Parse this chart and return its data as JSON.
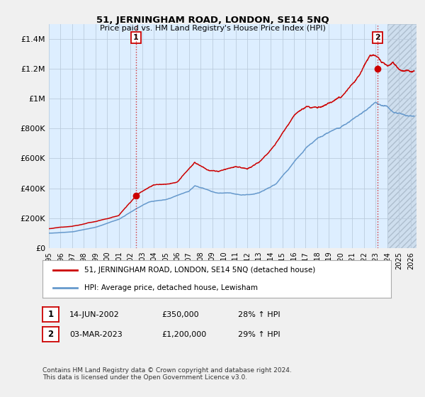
{
  "title": "51, JERNINGHAM ROAD, LONDON, SE14 5NQ",
  "subtitle": "Price paid vs. HM Land Registry's House Price Index (HPI)",
  "ylabel_ticks": [
    "£0",
    "£200K",
    "£400K",
    "£600K",
    "£800K",
    "£1M",
    "£1.2M",
    "£1.4M"
  ],
  "ytick_values": [
    0,
    200000,
    400000,
    600000,
    800000,
    1000000,
    1200000,
    1400000
  ],
  "ylim": [
    0,
    1500000
  ],
  "xlim_start": 1995.0,
  "xlim_end": 2026.5,
  "red_line_color": "#cc0000",
  "blue_line_color": "#6699cc",
  "plot_bg_color": "#ddeeff",
  "hatch_color": "#c0ccdd",
  "marker1_date": 2002.45,
  "marker1_value": 350000,
  "marker2_date": 2023.17,
  "marker2_value": 1200000,
  "hatch_start": 2024.0,
  "vline_color": "#cc0000",
  "vline_style": ":",
  "annotation1_label": "1",
  "annotation2_label": "2",
  "legend_line1": "51, JERNINGHAM ROAD, LONDON, SE14 5NQ (detached house)",
  "legend_line2": "HPI: Average price, detached house, Lewisham",
  "table_row1": [
    "1",
    "14-JUN-2002",
    "£350,000",
    "28% ↑ HPI"
  ],
  "table_row2": [
    "2",
    "03-MAR-2023",
    "£1,200,000",
    "29% ↑ HPI"
  ],
  "footer": "Contains HM Land Registry data © Crown copyright and database right 2024.\nThis data is licensed under the Open Government Licence v3.0.",
  "bg_color": "#f0f0f0",
  "grid_color": "#bbccdd",
  "font_family": "DejaVu Sans"
}
